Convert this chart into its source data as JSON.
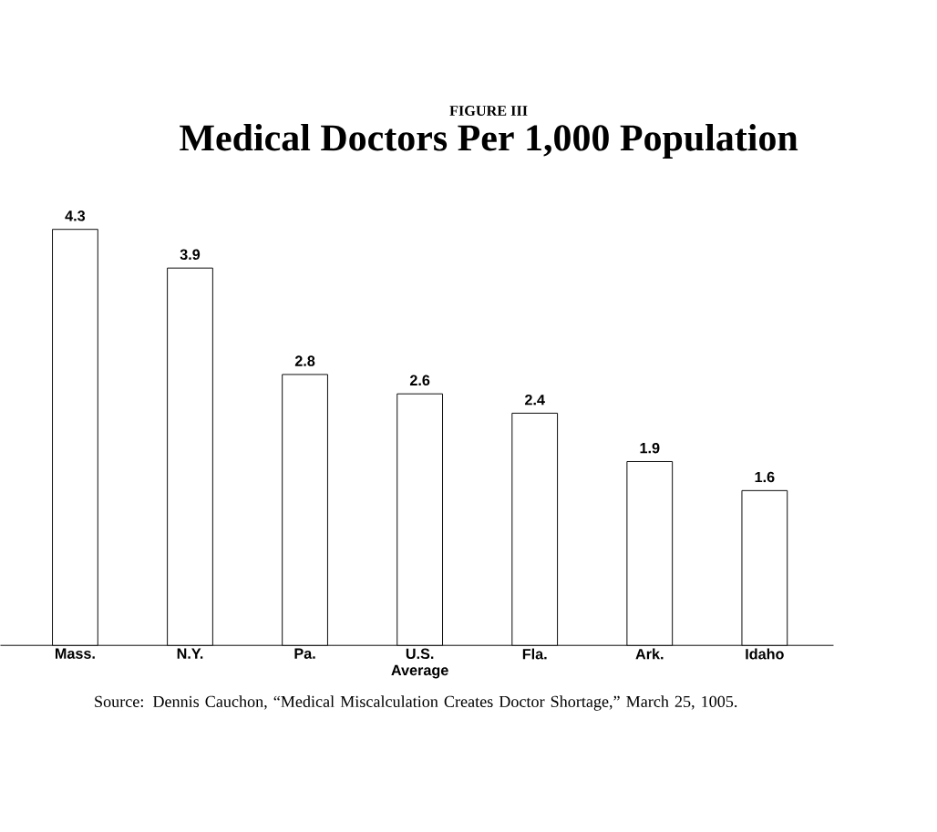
{
  "chart_data": {
    "type": "bar",
    "title": "FIGURE III",
    "subtitle": "Medical Doctors Per 1,000 Population",
    "categories": [
      "Mass.",
      "N.Y.",
      "Pa.",
      "U.S. Average",
      "Fla.",
      "Ark.",
      "Idaho"
    ],
    "values": [
      4.3,
      3.9,
      2.8,
      2.6,
      2.4,
      1.9,
      1.6
    ],
    "color": "#ffffff",
    "data_labels": true,
    "annotations": [
      "Source: Dennis Cauchon, “Medical Miscalculation Creates Doctor Shortage,” March 25, 1005."
    ]
  }
}
